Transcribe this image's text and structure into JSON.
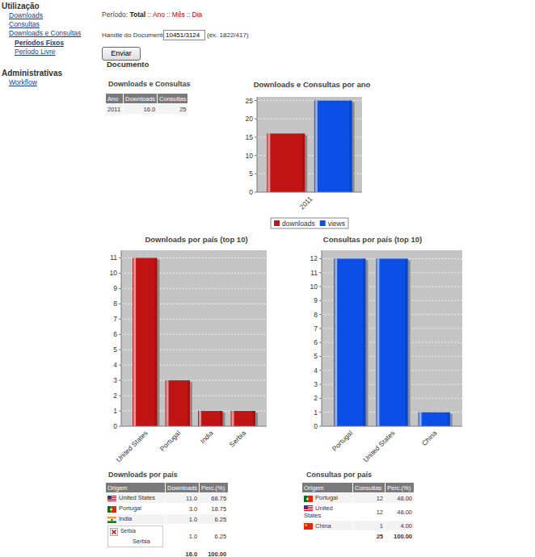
{
  "sidebar": [
    {
      "title": "Utilização",
      "links": [
        "Downloads",
        "Consultas",
        "Downloads e Consultas"
      ],
      "sublinks": [
        "Períodos Fixos",
        "Período Livre"
      ]
    },
    {
      "title": "Administrativas",
      "links": [
        "Workflow"
      ]
    }
  ],
  "period": {
    "label": "Período:",
    "options": [
      "Total",
      "Ano",
      "Mês",
      "Dia"
    ],
    "separator": "::"
  },
  "form": {
    "label": "Handle do Documento",
    "value": "10451/3124",
    "example": "(ex. 1822/417)",
    "button": "Enviar"
  },
  "section_title": "Documento",
  "tables": [
    {
      "title": "Downloads e Consultas",
      "columns": [
        "Ano",
        "Downloads",
        "Consultas"
      ],
      "rows": [
        [
          "2011",
          "16.0",
          "25"
        ]
      ]
    },
    {
      "title": "Downloads por país",
      "columns": [
        "Origem",
        "Downloads",
        "Perc.(%)"
      ],
      "rows": [
        [
          "United States",
          "11.0",
          "68.75"
        ],
        [
          "Portugal",
          "3.0",
          "18.75"
        ],
        [
          "India",
          "1.0",
          "6.25"
        ],
        [
          "Serbia",
          "1.0",
          "6.25"
        ]
      ],
      "flag_alt": [
        null,
        null,
        null,
        "Serbia"
      ],
      "total": [
        "16.0",
        "100.00"
      ]
    },
    {
      "title": "Consultas por país",
      "columns": [
        "Origem",
        "Consultas",
        "Perc.(%)"
      ],
      "rows": [
        [
          "Portugal",
          "12",
          "48.00"
        ],
        [
          "United States",
          "12",
          "48.00"
        ],
        [
          "China",
          "1",
          "4.00"
        ]
      ],
      "total": [
        "25",
        "100.00"
      ]
    }
  ],
  "chart_data": [
    {
      "type": "bar",
      "title": "Downloads e Consultas por ano",
      "categories": [
        "2011"
      ],
      "series": [
        {
          "name": "downloads",
          "color": "#c01414",
          "values": [
            16
          ]
        },
        {
          "name": "views",
          "color": "#0b4fe6",
          "values": [
            25
          ]
        }
      ],
      "ylim": [
        0,
        26
      ],
      "yticks": [
        0,
        5,
        10,
        15,
        20,
        25
      ],
      "grid": true,
      "legend": "bottom"
    },
    {
      "type": "bar",
      "title": "Downloads por país (top 10)",
      "categories": [
        "United States",
        "Portugal",
        "India",
        "Serbia"
      ],
      "values": [
        11,
        3,
        1,
        1
      ],
      "color": "#c01414",
      "ylim": [
        0,
        11.5
      ],
      "yticks": [
        0,
        1,
        2,
        3,
        4,
        5,
        6,
        7,
        8,
        9,
        10,
        11
      ],
      "grid": true
    },
    {
      "type": "bar",
      "title": "Consultas por país (top 10)",
      "categories": [
        "Portugal",
        "United States",
        "China"
      ],
      "values": [
        12,
        12,
        1
      ],
      "color": "#0b4fe6",
      "ylim": [
        0,
        12.6
      ],
      "yticks": [
        0,
        1,
        2,
        3,
        4,
        5,
        6,
        7,
        8,
        9,
        10,
        11,
        12
      ],
      "grid": true
    }
  ]
}
